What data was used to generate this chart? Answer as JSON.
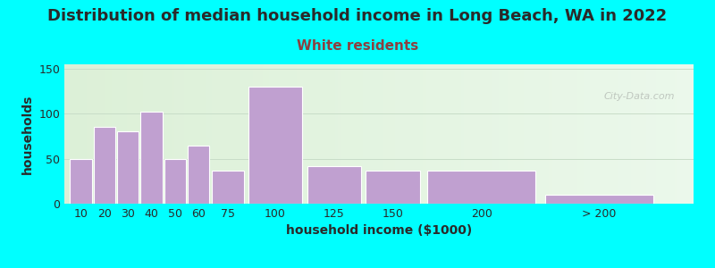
{
  "title": "Distribution of median household income in Long Beach, WA in 2022",
  "subtitle": "White residents",
  "xlabel": "household income ($1000)",
  "ylabel": "households",
  "background_color": "#00FFFF",
  "bar_color": "#C0A0D0",
  "ylim": [
    0,
    155
  ],
  "yticks": [
    0,
    50,
    100,
    150
  ],
  "categories": [
    "10",
    "20",
    "30",
    "40",
    "50",
    "60",
    "75",
    "100",
    "125",
    "150",
    "200",
    "> 200"
  ],
  "left_edges": [
    0,
    10,
    20,
    30,
    40,
    50,
    60,
    75,
    100,
    125,
    150,
    200
  ],
  "widths": [
    10,
    10,
    10,
    10,
    10,
    10,
    15,
    25,
    25,
    25,
    50,
    50
  ],
  "values": [
    50,
    85,
    80,
    102,
    50,
    65,
    37,
    130,
    42,
    37,
    37,
    10
  ],
  "title_fontsize": 13,
  "subtitle_fontsize": 11,
  "label_fontsize": 10,
  "tick_fontsize": 9,
  "subtitle_color": "#8B4040",
  "text_color": "#2a2a2a",
  "watermark": "City-Data.com"
}
